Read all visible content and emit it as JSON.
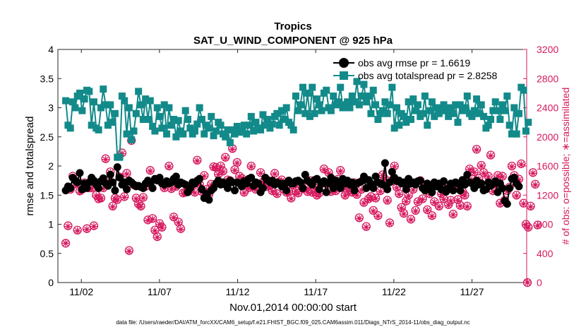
{
  "chart_data": {
    "type": "line",
    "title": "Tropics",
    "subtitle": "SAT_U_WIND_COMPONENT @ 925 hPa",
    "xlabel": "Nov.01,2014 00:00:00 start",
    "ylabel": "rmse and totalspread",
    "ylabel_right": "# of obs: o=possible; ∗=assimilated",
    "footnote": "data file: /Users/raeder/DAI/ATM_forcXX/CAM6_setup/f.e21.FHIST_BGC.f09_025.CAM6assim.011/Diags_NTrS_2014-11/obs_diag_output.nc",
    "xlim": [
      0.5,
      30.5
    ],
    "ylim": [
      0,
      4
    ],
    "ylim_right": [
      0,
      3200
    ],
    "x_ticks": [
      2,
      7,
      12,
      17,
      22,
      27
    ],
    "x_tick_labels": [
      "11/02",
      "11/07",
      "11/12",
      "11/17",
      "11/22",
      "11/27"
    ],
    "y_ticks": [
      0,
      0.5,
      1,
      1.5,
      2,
      2.5,
      3,
      3.5,
      4
    ],
    "y_tick_labels": [
      "0",
      "0.5",
      "1",
      "1.5",
      "2",
      "2.5",
      "3",
      "3.5",
      "4"
    ],
    "y_right_ticks": [
      0,
      400,
      800,
      1200,
      1600,
      2000,
      2400,
      2800,
      3200
    ],
    "y_right_tick_labels": [
      "0",
      "400",
      "800",
      "1200",
      "1600",
      "2000",
      "2400",
      "2800",
      "3200"
    ],
    "legend": {
      "position": "top-right",
      "entries": [
        "obs avg rmse pr = 1.6619",
        "obs avg totalspread pr = 2.8258"
      ]
    },
    "colors": {
      "rmse": "#000000",
      "spread": "#138a8a",
      "obs": "#d6185e"
    },
    "series": [
      {
        "name": "obs avg rmse pr",
        "values": [
          1.58,
          1.65,
          1.62,
          1.8,
          1.75,
          1.72,
          1.88,
          1.6,
          1.7,
          1.62,
          1.72,
          1.8,
          1.75,
          1.68,
          1.62,
          1.74,
          1.79,
          1.7,
          1.66,
          1.85,
          1.72,
          1.58,
          1.98,
          1.8,
          1.68,
          1.72,
          1.6,
          1.75,
          1.72,
          1.68,
          1.65,
          1.66,
          1.64,
          1.62,
          1.7,
          1.75,
          1.7,
          1.62,
          1.78,
          1.75,
          1.8,
          1.7,
          1.68,
          1.74,
          1.7,
          1.72,
          1.78,
          1.82,
          1.68,
          1.72,
          1.7,
          1.68,
          1.55,
          1.62,
          1.72,
          1.7,
          1.75,
          1.78,
          1.6,
          1.45,
          1.52,
          1.42,
          1.58,
          1.62,
          1.7,
          1.75,
          1.68,
          1.72,
          1.68,
          1.62,
          1.75,
          1.72,
          1.58,
          1.72,
          1.7,
          1.65,
          1.74,
          1.7,
          1.78,
          1.8,
          1.66,
          1.72,
          1.7,
          1.55,
          1.62,
          1.8,
          1.76,
          1.72,
          1.75,
          1.68,
          1.72,
          1.7,
          1.65,
          1.7,
          1.58,
          1.75,
          1.7,
          1.7,
          1.74,
          1.75,
          1.72,
          1.62,
          1.85,
          1.75,
          1.72,
          1.68,
          1.76,
          1.78,
          1.6,
          1.7,
          1.74,
          1.55,
          1.7,
          1.8,
          1.62,
          1.75,
          1.72,
          1.62,
          1.78,
          1.7,
          1.75,
          1.68,
          1.72,
          1.58,
          1.7,
          1.72,
          1.74,
          1.82,
          1.62,
          1.76,
          1.7,
          1.62,
          1.82,
          1.72,
          1.7,
          1.68,
          2.05,
          1.6,
          1.72,
          1.9,
          1.8,
          1.74,
          1.75,
          1.7,
          1.72,
          1.6,
          1.78,
          1.7,
          1.72,
          1.68,
          1.74,
          1.75,
          1.62,
          1.58,
          1.7,
          1.65,
          1.55,
          1.72,
          1.65,
          1.7,
          1.6,
          1.74,
          1.56,
          1.62,
          1.7,
          1.58,
          1.72,
          1.7,
          1.58,
          1.76,
          1.68,
          1.85,
          1.72,
          1.7,
          1.62,
          1.75,
          1.68,
          1.7,
          1.58,
          1.6,
          1.72,
          1.66,
          1.7,
          1.74,
          1.55,
          1.7,
          1.62,
          1.4,
          1.35,
          1.62,
          1.78,
          1.8,
          1.7,
          1.65
        ]
      },
      {
        "name": "obs avg totalspread pr",
        "values": [
          3.12,
          2.7,
          2.65,
          3.1,
          3.0,
          3.2,
          3.25,
          2.95,
          3.15,
          3.3,
          3.28,
          2.7,
          3.1,
          2.65,
          2.62,
          3.0,
          3.32,
          3.05,
          2.7,
          3.05,
          2.75,
          2.9,
          2.15,
          2.15,
          3.2,
          3.12,
          2.55,
          3.0,
          2.45,
          2.6,
          2.9,
          3.28,
          3.05,
          2.8,
          3.15,
          2.8,
          3.12,
          2.68,
          2.6,
          3.0,
          2.85,
          2.65,
          3.05,
          2.55,
          3.0,
          2.7,
          2.8,
          2.5,
          2.78,
          2.6,
          2.55,
          2.95,
          2.8,
          2.65,
          2.55,
          2.6,
          2.72,
          3.0,
          2.8,
          2.55,
          2.7,
          2.65,
          2.85,
          2.52,
          2.6,
          2.75,
          2.7,
          2.55,
          2.5,
          2.62,
          2.4,
          2.62,
          2.55,
          2.68,
          2.58,
          2.6,
          2.7,
          2.55,
          2.7,
          2.85,
          2.6,
          2.75,
          2.65,
          2.62,
          2.88,
          2.7,
          2.8,
          2.65,
          2.72,
          2.85,
          2.9,
          2.7,
          2.95,
          2.8,
          3.0,
          2.75,
          2.7,
          2.62,
          3.2,
          2.95,
          3.05,
          3.35,
          2.9,
          3.25,
          2.85,
          3.35,
          2.9,
          3.15,
          3.05,
          2.95,
          3.25,
          3.3,
          3.0,
          2.95,
          3.2,
          3.05,
          3.1,
          3.35,
          3.0,
          3.05,
          3.1,
          3.0,
          3.2,
          3.1,
          3.45,
          3.05,
          3.2,
          3.4,
          3.1,
          3.2,
          2.9,
          3.3,
          3.05,
          2.8,
          2.9,
          2.95,
          3.1,
          2.9,
          3.05,
          3.35,
          2.65,
          3.0,
          2.7,
          2.9,
          2.85,
          2.75,
          3.1,
          2.8,
          3.15,
          2.95,
          3.05,
          2.85,
          2.9,
          3.2,
          2.7,
          2.95,
          3.1,
          2.85,
          3.0,
          2.9,
          2.95,
          3.05,
          2.95,
          2.85,
          3.0,
          2.9,
          3.05,
          2.75,
          3.05,
          2.95,
          3.0,
          3.2,
          2.9,
          2.85,
          2.95,
          3.15,
          2.9,
          3.05,
          2.85,
          2.65,
          2.7,
          2.8,
          2.95,
          3.1,
          2.95,
          2.8,
          3.05,
          2.95,
          3.2,
          2.7,
          2.55,
          3.0,
          2.55,
          2.9,
          3.35,
          3.3,
          2.6,
          2.75
        ]
      },
      {
        "name": "# of obs possible",
        "axis": "right",
        "values": [
          540,
          780,
          1280,
          1460,
          1360,
          720,
          1260,
          1280,
          1370,
          740,
          1300,
          1300,
          780,
          1200,
          1150,
          1160,
          1300,
          1700,
          1400,
          1520,
          1050,
          1160,
          1140,
          1450,
          1780,
          1180,
          1500,
          440,
          1950,
          1340,
          1160,
          1080,
          1050,
          1170,
          1320,
          860,
          1540,
          880,
          720,
          630,
          810,
          760,
          1300,
          1380,
          1600,
          1290,
          900,
          1320,
          830,
          740,
          1230,
          1240,
          1250,
          1280,
          1340,
          1240,
          1680,
          1350,
          1250,
          1470,
          1280,
          1210,
          1350,
          1590,
          1580,
          1490,
          1600,
          1530,
          1720,
          1410,
          1400,
          1840,
          1550,
          1650,
          1460,
          1430,
          1240,
          1350,
          1300,
          1600,
          1320,
          1280,
          1350,
          1510,
          1380,
          1400,
          1320,
          1330,
          1260,
          1500,
          1220,
          1380,
          1410,
          1280,
          1240,
          1250,
          1160,
          1340,
          1260,
          1230,
          1350,
          1290,
          1300,
          1250,
          1400,
          1240,
          1300,
          1200,
          1230,
          1360,
          1560,
          1360,
          1510,
          1250,
          1350,
          1260,
          1420,
          1540,
          1320,
          1200,
          1260,
          1300,
          1240,
          1370,
          1210,
          890,
          1280,
          1100,
          770,
          1150,
          1180,
          990,
          1160,
          920,
          1260,
          1480,
          1420,
          1130,
          820,
          1400,
          1600,
          1310,
          1220,
          1030,
          950,
          1120,
          1200,
          870,
          1280,
          990,
          1110,
          1400,
          1150,
          1290,
          1000,
          1220,
          920,
          1110,
          1330,
          1050,
          1220,
          1150,
          1310,
          1070,
          1130,
          940,
          1310,
          1140,
          1060,
          1250,
          1200,
          1050,
          1560,
          1420,
          1520,
          1830,
          1430,
          1610,
          1510,
          1310,
          1460,
          1750,
          1260,
          1350,
          1470,
          1090,
          1460,
          1130,
          1260,
          1310,
          1600,
          1470,
          1200,
          1420,
          1630,
          1090,
          800,
          760,
          1050,
          1510,
          1350,
          790
        ]
      },
      {
        "name": "# of obs assimilated",
        "axis": "right",
        "values": [
          540,
          770,
          1270,
          1440,
          1340,
          710,
          1240,
          1270,
          1360,
          730,
          1290,
          1290,
          770,
          1190,
          1140,
          1150,
          1290,
          1690,
          1390,
          1510,
          1040,
          1150,
          1130,
          1440,
          1770,
          1170,
          1490,
          430,
          1940,
          1330,
          1150,
          1070,
          1040,
          1160,
          1310,
          850,
          1530,
          870,
          710,
          620,
          800,
          750,
          1290,
          1370,
          1590,
          1280,
          890,
          1310,
          820,
          730,
          1220,
          1230,
          1240,
          1270,
          1330,
          1230,
          1670,
          1340,
          1240,
          1460,
          1270,
          1200,
          1340,
          1580,
          1570,
          1480,
          1590,
          1520,
          1710,
          1400,
          1390,
          1830,
          1540,
          1640,
          1450,
          1420,
          1230,
          1340,
          1290,
          1590,
          1310,
          1270,
          1340,
          1500,
          1370,
          1390,
          1310,
          1320,
          1250,
          1490,
          1210,
          1370,
          1400,
          1270,
          1230,
          1240,
          1150,
          1330,
          1250,
          1220,
          1340,
          1280,
          1290,
          1240,
          1390,
          1230,
          1290,
          1190,
          1220,
          1350,
          1550,
          1350,
          1500,
          1240,
          1340,
          1250,
          1410,
          1530,
          1310,
          1190,
          1250,
          1290,
          1230,
          1360,
          1200,
          880,
          1270,
          1090,
          760,
          1140,
          1170,
          980,
          1150,
          910,
          1250,
          1470,
          1410,
          1120,
          810,
          1390,
          1590,
          1300,
          1210,
          1020,
          940,
          1110,
          1190,
          860,
          1270,
          980,
          1100,
          1390,
          1140,
          1280,
          990,
          1210,
          910,
          1100,
          1320,
          1040,
          1210,
          1140,
          1300,
          1060,
          1120,
          930,
          1300,
          1130,
          1050,
          1240,
          1190,
          1040,
          1550,
          1410,
          1510,
          1820,
          1420,
          1600,
          1500,
          1300,
          1450,
          1740,
          1250,
          1340,
          1460,
          1080,
          1450,
          1120,
          1250,
          1300,
          1590,
          1460,
          1190,
          1410,
          1620,
          1080,
          790,
          750,
          1040,
          1500,
          1340,
          780
        ]
      }
    ]
  }
}
